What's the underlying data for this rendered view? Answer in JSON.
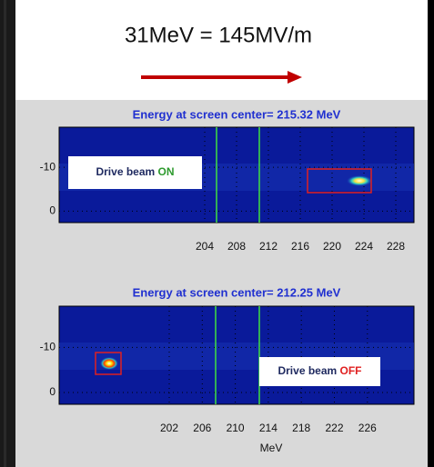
{
  "header": {
    "title": "31MeV = 145MV/m"
  },
  "panels": [
    {
      "title": "Energy at screen center= 215.32 MeV",
      "yticks": [
        "-10",
        "0"
      ],
      "xticks": [
        "204",
        "208",
        "212",
        "216",
        "220",
        "224",
        "228"
      ],
      "label": {
        "text": "Drive beam ",
        "state": "ON"
      }
    },
    {
      "title": "Energy at screen center= 212.25 MeV",
      "yticks": [
        "-10",
        "0"
      ],
      "xticks": [
        "202",
        "206",
        "210",
        "214",
        "218",
        "222",
        "226"
      ],
      "label": {
        "text": "Drive beam ",
        "state": "OFF"
      }
    }
  ],
  "xlabel": "MeV"
}
